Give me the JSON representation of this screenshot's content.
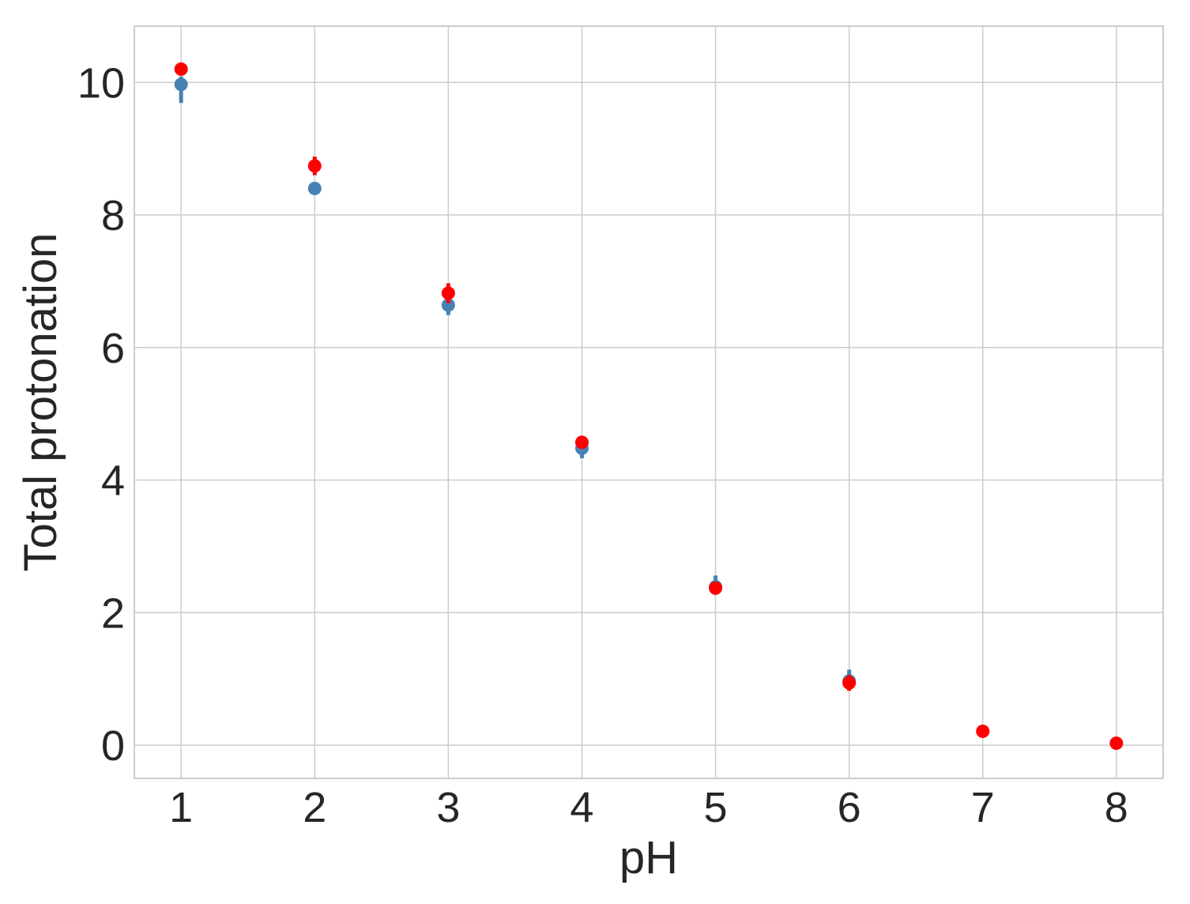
{
  "chart_data": {
    "type": "scatter",
    "title": "",
    "xlabel": "pH",
    "ylabel": "Total protonation",
    "xlim": [
      0.65,
      8.35
    ],
    "ylim": [
      -0.5,
      10.85
    ],
    "xticks": [
      1,
      2,
      3,
      4,
      5,
      6,
      7,
      8
    ],
    "yticks": [
      0,
      2,
      4,
      6,
      8,
      10
    ],
    "grid": true,
    "legend": "none",
    "series": [
      {
        "color": "#4682b4",
        "points": [
          {
            "x": 1,
            "y": 9.97,
            "err_low": 0.28,
            "err_high": 0.12
          },
          {
            "x": 2,
            "y": 8.4,
            "err_low": 0.07,
            "err_high": 0.07
          },
          {
            "x": 3,
            "y": 6.64,
            "err_low": 0.15,
            "err_high": 0.08
          },
          {
            "x": 4,
            "y": 4.48,
            "err_low": 0.15,
            "err_high": 0.1
          },
          {
            "x": 5,
            "y": 2.39,
            "err_low": 0.12,
            "err_high": 0.17
          },
          {
            "x": 6,
            "y": 0.97,
            "err_low": 0.12,
            "err_high": 0.17
          }
        ]
      },
      {
        "color": "#ff0000",
        "points": [
          {
            "x": 1,
            "y": 10.2,
            "err_low": 0.07,
            "err_high": 0.07
          },
          {
            "x": 2,
            "y": 8.74,
            "err_low": 0.14,
            "err_high": 0.14
          },
          {
            "x": 3,
            "y": 6.82,
            "err_low": 0.15,
            "err_high": 0.15
          },
          {
            "x": 4,
            "y": 4.57,
            "err_low": 0.07,
            "err_high": 0.07
          },
          {
            "x": 5,
            "y": 2.37,
            "err_low": 0.05,
            "err_high": 0.05
          },
          {
            "x": 6,
            "y": 0.94,
            "err_low": 0.12,
            "err_high": 0.12
          },
          {
            "x": 7,
            "y": 0.21,
            "err_low": 0.03,
            "err_high": 0.03
          },
          {
            "x": 8,
            "y": 0.03,
            "err_low": 0.02,
            "err_high": 0.02
          }
        ]
      }
    ]
  }
}
